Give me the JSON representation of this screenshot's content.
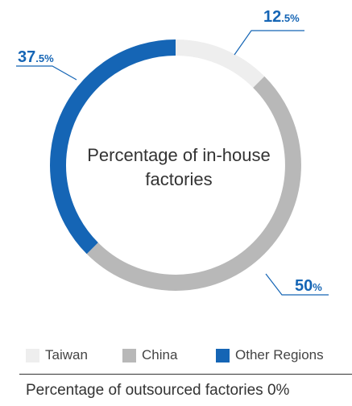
{
  "chart_data": {
    "type": "pie",
    "title": "Percentage of in-house factories",
    "slices": [
      {
        "name": "Taiwan",
        "value": 12.5,
        "color": "#eeeeee",
        "label_int": "12",
        "label_dec": ".5%"
      },
      {
        "name": "China",
        "value": 50,
        "color": "#b8b8b8",
        "label_int": "50",
        "label_dec": "%"
      },
      {
        "name": "Other Regions",
        "value": 37.5,
        "color": "#1565b5",
        "label_int": "37",
        "label_dec": ".5%"
      }
    ],
    "legend_placement": "bottom",
    "footer": "Percentage of outsourced factories 0%"
  },
  "colors": {
    "accent": "#1565b5",
    "leader_line": "#1565b5"
  }
}
